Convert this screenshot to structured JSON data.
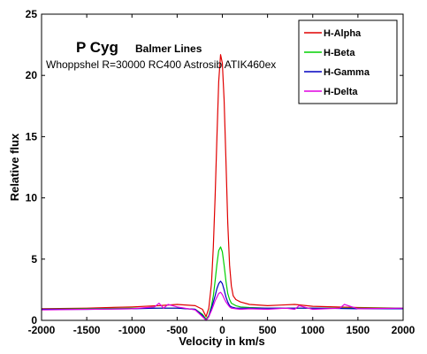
{
  "chart_data": {
    "type": "line",
    "title_main": "P Cyg",
    "title_sub": "Balmer Lines",
    "subtitle": "Whoppshel R=30000 RC400 Astrosib ATIK460ex",
    "xlabel": "Velocity in km/s",
    "ylabel": "Relative flux",
    "xlim": [
      -2000,
      2000
    ],
    "ylim": [
      0,
      25
    ],
    "xticks": [
      -2000,
      -1500,
      -1000,
      -500,
      0,
      500,
      1000,
      1500,
      2000
    ],
    "yticks": [
      0,
      5,
      10,
      15,
      20,
      25
    ],
    "legend_position": "top-right",
    "grid": false,
    "series": [
      {
        "name": "H-Alpha",
        "color": "#e00000",
        "x": [
          -2000,
          -1500,
          -1000,
          -700,
          -500,
          -300,
          -220,
          -180,
          -150,
          -120,
          -100,
          -80,
          -60,
          -40,
          -20,
          0,
          20,
          40,
          60,
          80,
          100,
          120,
          150,
          200,
          300,
          500,
          650,
          800,
          1000,
          1500,
          2000
        ],
        "y": [
          0.95,
          1.0,
          1.1,
          1.2,
          1.3,
          1.2,
          0.9,
          0.3,
          1.0,
          3.0,
          6.0,
          10.0,
          15.0,
          19.5,
          21.7,
          21.0,
          18.0,
          13.0,
          8.0,
          4.5,
          2.8,
          2.0,
          1.7,
          1.5,
          1.3,
          1.2,
          1.25,
          1.3,
          1.15,
          1.05,
          1.0
        ]
      },
      {
        "name": "H-Beta",
        "color": "#00d000",
        "x": [
          -2000,
          -1500,
          -1000,
          -700,
          -500,
          -300,
          -220,
          -180,
          -150,
          -120,
          -100,
          -80,
          -60,
          -40,
          -20,
          0,
          20,
          40,
          60,
          80,
          100,
          150,
          200,
          300,
          500,
          800,
          1000,
          1500,
          2000
        ],
        "y": [
          0.9,
          0.95,
          1.0,
          1.0,
          1.0,
          0.9,
          0.5,
          0.1,
          0.4,
          1.2,
          2.0,
          3.2,
          4.6,
          5.7,
          6.0,
          5.6,
          4.5,
          3.2,
          2.2,
          1.7,
          1.4,
          1.2,
          1.1,
          1.05,
          1.0,
          1.0,
          1.0,
          1.0,
          1.0
        ]
      },
      {
        "name": "H-Gamma",
        "color": "#0000c0",
        "x": [
          -2000,
          -1500,
          -1000,
          -700,
          -500,
          -300,
          -220,
          -180,
          -150,
          -120,
          -100,
          -80,
          -60,
          -40,
          -20,
          0,
          20,
          40,
          60,
          80,
          100,
          150,
          200,
          300,
          500,
          800,
          1000,
          1500,
          2000
        ],
        "y": [
          0.9,
          0.9,
          0.95,
          1.0,
          1.0,
          0.9,
          0.4,
          0.0,
          0.3,
          1.0,
          1.5,
          2.0,
          2.6,
          3.0,
          3.2,
          3.0,
          2.5,
          1.9,
          1.5,
          1.2,
          1.1,
          1.0,
          1.0,
          1.0,
          1.0,
          1.0,
          1.0,
          0.95,
          0.95
        ]
      },
      {
        "name": "H-Delta",
        "color": "#e000e0",
        "x": [
          -2000,
          -1500,
          -1000,
          -750,
          -700,
          -650,
          -600,
          -500,
          -300,
          -220,
          -180,
          -150,
          -120,
          -100,
          -80,
          -60,
          -40,
          -20,
          0,
          20,
          40,
          60,
          80,
          100,
          150,
          200,
          300,
          500,
          700,
          800,
          850,
          1000,
          1300,
          1350,
          1500,
          2000
        ],
        "y": [
          0.85,
          0.9,
          0.95,
          1.1,
          1.4,
          1.0,
          1.3,
          1.1,
          0.85,
          0.3,
          0.0,
          0.3,
          0.8,
          1.2,
          1.6,
          1.9,
          2.2,
          2.3,
          2.1,
          1.8,
          1.5,
          1.3,
          1.1,
          1.0,
          0.95,
          0.9,
          0.95,
          0.9,
          1.0,
          0.9,
          1.2,
          0.9,
          1.0,
          1.3,
          0.95,
          1.0
        ]
      }
    ]
  }
}
